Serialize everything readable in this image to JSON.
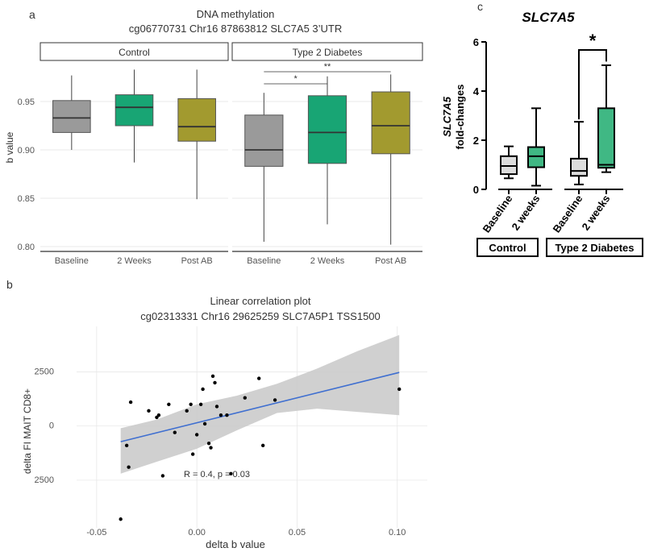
{
  "panel_labels": {
    "a": "a",
    "b": "b",
    "c": "c"
  },
  "colors": {
    "baseline": "#9a9a9a",
    "weeks2": "#18a574",
    "postab": "#a29a2f",
    "c_baseline": "#dcdcdc",
    "c_weeks2": "#40b884",
    "band": "#c8c8c8",
    "fit": "#3f6fd0"
  },
  "chart_data": [
    {
      "type": "box",
      "panel": "a",
      "title": "DNA methylation",
      "subtitle": "cg06770731 Chr16 87863812 SLC7A5 3’UTR",
      "ylabel": "b value",
      "ylim": [
        0.795,
        0.99
      ],
      "yticks": [
        0.8,
        0.85,
        0.9,
        0.95
      ],
      "ytick_labels": [
        "0.80",
        "0.85",
        "0.90",
        "0.95"
      ],
      "facets": [
        {
          "label": "Control",
          "boxes": [
            {
              "category": "Baseline",
              "color_key": "baseline",
              "min": 0.9,
              "q1": 0.918,
              "median": 0.933,
              "q3": 0.951,
              "max": 0.977
            },
            {
              "category": "2 Weeks",
              "color_key": "weeks2",
              "min": 0.887,
              "q1": 0.925,
              "median": 0.944,
              "q3": 0.957,
              "max": 0.983
            },
            {
              "category": "Post AB",
              "color_key": "postab",
              "min": 0.849,
              "q1": 0.909,
              "median": 0.924,
              "q3": 0.953,
              "max": 0.983
            }
          ]
        },
        {
          "label": "Type 2 Diabetes",
          "boxes": [
            {
              "category": "Baseline",
              "color_key": "baseline",
              "min": 0.805,
              "q1": 0.883,
              "median": 0.9,
              "q3": 0.936,
              "max": 0.959
            },
            {
              "category": "2 Weeks",
              "color_key": "weeks2",
              "min": 0.823,
              "q1": 0.886,
              "median": 0.918,
              "q3": 0.956,
              "max": 0.976
            },
            {
              "category": "Post AB",
              "color_key": "postab",
              "min": 0.802,
              "q1": 0.896,
              "median": 0.925,
              "q3": 0.96,
              "max": 0.978
            }
          ]
        }
      ],
      "significance": [
        {
          "facet": 1,
          "from": 0,
          "to": 1,
          "label": "*"
        },
        {
          "facet": 1,
          "from": 0,
          "to": 2,
          "label": "**"
        }
      ]
    },
    {
      "type": "scatter",
      "panel": "b",
      "title": "Linear correlation plot",
      "subtitle": "cg02313331 Chr16 29625259 SLC7A5P1 TSS1500",
      "xlabel": "delta b value",
      "ylabel": "delta FI MAIT CD8+",
      "xlim": [
        -0.06,
        0.115
      ],
      "ylim": [
        -4700,
        4600
      ],
      "xticks": [
        -0.05,
        0.0,
        0.05,
        0.1
      ],
      "xtick_labels": [
        "-0.05",
        "0.00",
        "0.05",
        "0.10"
      ],
      "yticks": [
        2500,
        0,
        -2500
      ],
      "ytick_labels": [
        "2500",
        "0",
        "2500"
      ],
      "annotation": {
        "text": "R = 0.4, p = 0.03",
        "x": 0.01,
        "y": -2200
      },
      "fit": {
        "slope": 23000,
        "intercept": 150,
        "x_range": [
          -0.038,
          0.101
        ]
      },
      "band": {
        "x": [
          -0.038,
          -0.02,
          0.0,
          0.02,
          0.04,
          0.06,
          0.08,
          0.101
        ],
        "upper": [
          -100,
          300,
          1000,
          1400,
          1950,
          2650,
          3450,
          4200
        ],
        "lower": [
          -2200,
          -1650,
          -1050,
          -200,
          600,
          800,
          650,
          500
        ]
      },
      "points": [
        {
          "x": -0.038,
          "y": -4300
        },
        {
          "x": -0.035,
          "y": -900
        },
        {
          "x": -0.034,
          "y": -1900
        },
        {
          "x": -0.033,
          "y": 1100
        },
        {
          "x": -0.024,
          "y": 700
        },
        {
          "x": -0.02,
          "y": 400
        },
        {
          "x": -0.019,
          "y": 500
        },
        {
          "x": -0.017,
          "y": -2300
        },
        {
          "x": -0.014,
          "y": 1000
        },
        {
          "x": -0.011,
          "y": -300
        },
        {
          "x": -0.005,
          "y": 700
        },
        {
          "x": -0.003,
          "y": 1000
        },
        {
          "x": -0.002,
          "y": -1300
        },
        {
          "x": 0.0,
          "y": -400
        },
        {
          "x": 0.002,
          "y": 1000
        },
        {
          "x": 0.003,
          "y": 1700
        },
        {
          "x": 0.004,
          "y": 100
        },
        {
          "x": 0.006,
          "y": -800
        },
        {
          "x": 0.007,
          "y": -1000
        },
        {
          "x": 0.008,
          "y": 2300
        },
        {
          "x": 0.009,
          "y": 2000
        },
        {
          "x": 0.01,
          "y": 900
        },
        {
          "x": 0.012,
          "y": 500
        },
        {
          "x": 0.015,
          "y": 500
        },
        {
          "x": 0.017,
          "y": -2200
        },
        {
          "x": 0.024,
          "y": 1300
        },
        {
          "x": 0.031,
          "y": 2200
        },
        {
          "x": 0.033,
          "y": -900
        },
        {
          "x": 0.039,
          "y": 1200
        },
        {
          "x": 0.101,
          "y": 1700
        }
      ]
    },
    {
      "type": "box",
      "panel": "c",
      "title": "SLC7A5",
      "ylabel_line1": "SLC7A5",
      "ylabel_line2": "fold-changes",
      "ylim": [
        0,
        6
      ],
      "yticks": [
        0,
        2,
        4,
        6
      ],
      "ytick_labels": [
        "0",
        "2",
        "4",
        "6"
      ],
      "groups": [
        {
          "label": "Control",
          "boxes": [
            {
              "category": "Baseline",
              "color_key": "c_baseline",
              "min": 0.45,
              "q1": 0.62,
              "median": 0.95,
              "q3": 1.35,
              "max": 1.75
            },
            {
              "category": "2 weeks",
              "color_key": "c_weeks2",
              "min": 0.15,
              "q1": 0.9,
              "median": 1.35,
              "q3": 1.72,
              "max": 3.3
            }
          ]
        },
        {
          "label": "Type 2 Diabetes",
          "boxes": [
            {
              "category": "Baseline",
              "color_key": "c_baseline",
              "min": 0.2,
              "q1": 0.55,
              "median": 0.75,
              "q3": 1.25,
              "max": 2.75
            },
            {
              "category": "2 weeks",
              "color_key": "c_weeks2",
              "min": 0.7,
              "q1": 0.88,
              "median": 1.0,
              "q3": 3.3,
              "max": 5.05
            }
          ]
        }
      ],
      "significance": {
        "group": 1,
        "from": 0,
        "to": 1,
        "label": "*"
      }
    }
  ]
}
